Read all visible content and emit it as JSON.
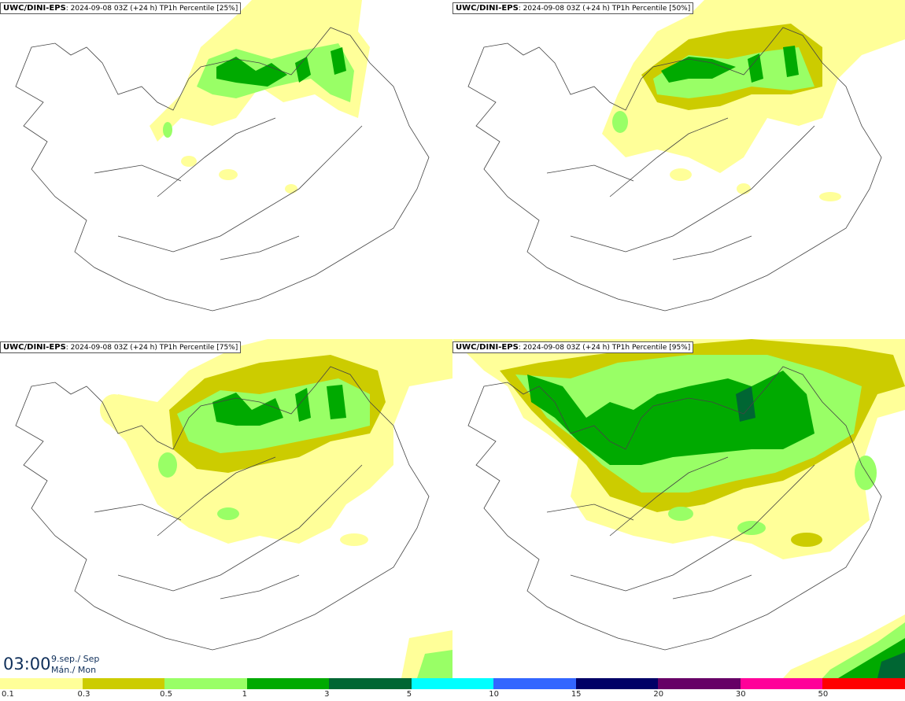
{
  "panels": [
    {
      "model": "UWC/DINI-EPS",
      "info": ": 2024-09-08 03Z (+24 h) TP1h Percentile [25%]"
    },
    {
      "model": "UWC/DINI-EPS",
      "info": ": 2024-09-08 03Z (+24 h) TP1h Percentile [50%]"
    },
    {
      "model": "UWC/DINI-EPS",
      "info": ": 2024-09-08 03Z (+24 h) TP1h Percentile [75%]"
    },
    {
      "model": "UWC/DINI-EPS",
      "info": ": 2024-09-08 03Z (+24 h) TP1h Percentile [95%]"
    }
  ],
  "time": {
    "clock": "03:00",
    "date_line": "9.sep./ Sep",
    "day_line": "Mán./ Mon"
  },
  "legend": {
    "labels": [
      "0.1",
      "0.3",
      "0.5",
      "1",
      "3",
      "5",
      "10",
      "15",
      "20",
      "30",
      "50"
    ],
    "colors": [
      "#ffff99",
      "#cccc00",
      "#99ff66",
      "#00aa00",
      "#006633",
      "#00ffff",
      "#3366ff",
      "#000066",
      "#660066",
      "#ff0099",
      "#ff0000"
    ]
  },
  "palette": {
    "light_yellow": "#ffff99",
    "olive": "#cccc00",
    "light_green": "#99ff66",
    "green": "#00aa00",
    "dark_green": "#006633"
  }
}
